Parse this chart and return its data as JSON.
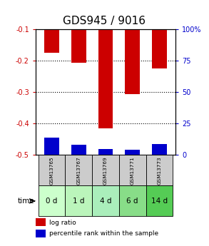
{
  "title": "GDS945 / 9016",
  "categories": [
    "GSM13765",
    "GSM13767",
    "GSM13769",
    "GSM13771",
    "GSM13773"
  ],
  "time_labels": [
    "0 d",
    "1 d",
    "4 d",
    "6 d",
    "14 d"
  ],
  "log_ratio": [
    -0.175,
    -0.205,
    -0.415,
    -0.305,
    -0.225
  ],
  "percentile_rank_vals": [
    14,
    8,
    5,
    4,
    9
  ],
  "ylim_left": [
    -0.5,
    -0.1
  ],
  "yticks_left": [
    -0.5,
    -0.4,
    -0.3,
    -0.2,
    -0.1
  ],
  "ylim_right": [
    0,
    100
  ],
  "yticks_right": [
    0,
    25,
    50,
    75,
    100
  ],
  "bar_color_red": "#cc0000",
  "bar_color_blue": "#0000cc",
  "bar_width": 0.55,
  "title_fontsize": 11,
  "tick_fontsize": 7,
  "time_row_colors": [
    "#ccffcc",
    "#bbf5bb",
    "#aaeebb",
    "#88dd88",
    "#55cc55"
  ],
  "sample_row_color": "#cccccc",
  "left_tick_color": "#cc0000",
  "right_tick_color": "#0000cc"
}
